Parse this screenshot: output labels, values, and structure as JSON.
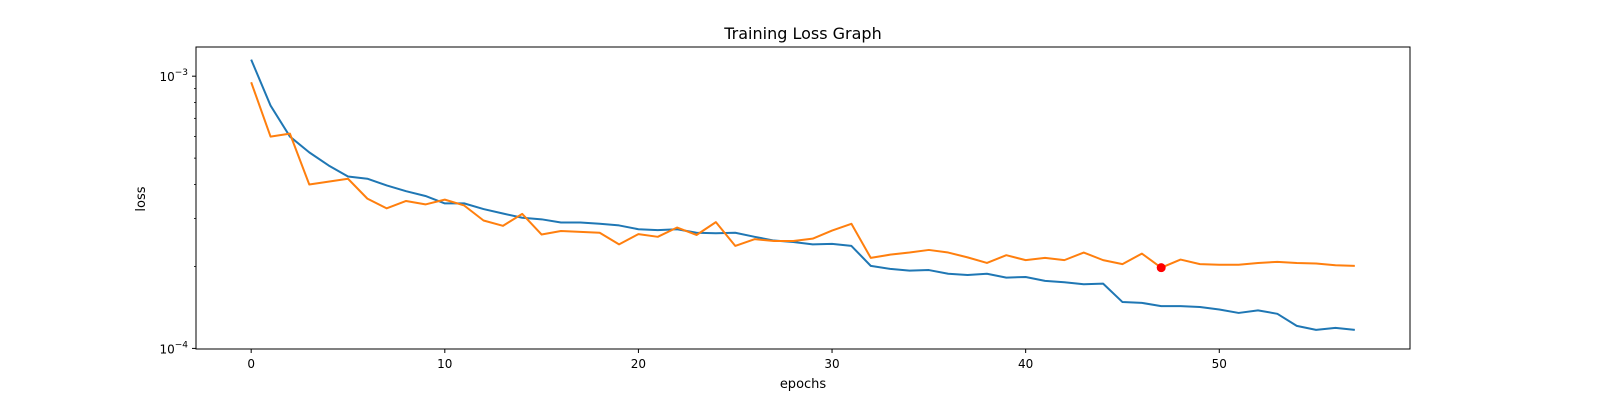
{
  "chart_data": {
    "type": "line",
    "title": "Training Loss Graph",
    "xlabel": "epochs",
    "ylabel": "loss",
    "yscale": "log",
    "xlim": [
      -2.85,
      59.85
    ],
    "ylim": [
      9.95e-05,
      0.00128
    ],
    "grid": false,
    "x_ticks": [
      {
        "value": 0,
        "label": "0"
      },
      {
        "value": 10,
        "label": "10"
      },
      {
        "value": 20,
        "label": "20"
      },
      {
        "value": 30,
        "label": "30"
      },
      {
        "value": 40,
        "label": "40"
      },
      {
        "value": 50,
        "label": "50"
      }
    ],
    "y_ticks": [
      {
        "value": 0.0001,
        "base": "10",
        "exponent": "−4"
      },
      {
        "value": 0.001,
        "base": "10",
        "exponent": "−3"
      }
    ],
    "x": [
      0,
      1,
      2,
      3,
      4,
      5,
      6,
      7,
      8,
      9,
      10,
      11,
      12,
      13,
      14,
      15,
      16,
      17,
      18,
      19,
      20,
      21,
      22,
      23,
      24,
      25,
      26,
      27,
      28,
      29,
      30,
      31,
      32,
      33,
      34,
      35,
      36,
      37,
      38,
      39,
      40,
      41,
      42,
      43,
      44,
      45,
      46,
      47,
      48,
      49,
      50,
      51,
      52,
      53,
      54,
      55,
      56,
      57
    ],
    "series": [
      {
        "color": "#1f77b4",
        "values": [
          0.00115,
          0.00078,
          0.0006,
          0.000525,
          0.00047,
          0.000428,
          0.00042,
          0.000397,
          0.000378,
          0.000363,
          0.000341,
          0.000341,
          0.000325,
          0.000313,
          0.000302,
          0.000298,
          0.00029,
          0.00029,
          0.000287,
          0.000283,
          0.000274,
          0.000272,
          0.000274,
          0.000266,
          0.000265,
          0.000266,
          0.000257,
          0.000249,
          0.000246,
          0.000241,
          0.000242,
          0.000238,
          0.000201,
          0.000196,
          0.000193,
          0.000194,
          0.000188,
          0.000186,
          0.000188,
          0.000182,
          0.000183,
          0.000177,
          0.000175,
          0.000172,
          0.000173,
          0.000148,
          0.000147,
          0.000143,
          0.000143,
          0.000142,
          0.000139,
          0.000135,
          0.000138,
          0.000134,
          0.000121,
          0.000117,
          0.000119,
          0.000117
        ]
      },
      {
        "color": "#ff7f0e",
        "values": [
          0.00095,
          0.0006,
          0.000615,
          0.0004,
          0.00041,
          0.00042,
          0.000355,
          0.000327,
          0.000348,
          0.000338,
          0.000352,
          0.000335,
          0.000295,
          0.000282,
          0.000312,
          0.000262,
          0.00027,
          0.000268,
          0.000266,
          0.000241,
          0.000263,
          0.000257,
          0.000278,
          0.000261,
          0.000291,
          0.000238,
          0.000252,
          0.000248,
          0.000248,
          0.000253,
          0.000271,
          0.000287,
          0.000215,
          0.000221,
          0.000225,
          0.00023,
          0.000225,
          0.000216,
          0.000206,
          0.00022,
          0.000211,
          0.000215,
          0.000211,
          0.000225,
          0.000211,
          0.000204,
          0.000223,
          0.000198,
          0.000212,
          0.000204,
          0.000203,
          0.000203,
          0.000206,
          0.000208,
          0.000206,
          0.000205,
          0.000202,
          0.000201
        ]
      }
    ],
    "markers": [
      {
        "x": 47,
        "y": 0.000198,
        "color": "#ff0000"
      }
    ]
  }
}
